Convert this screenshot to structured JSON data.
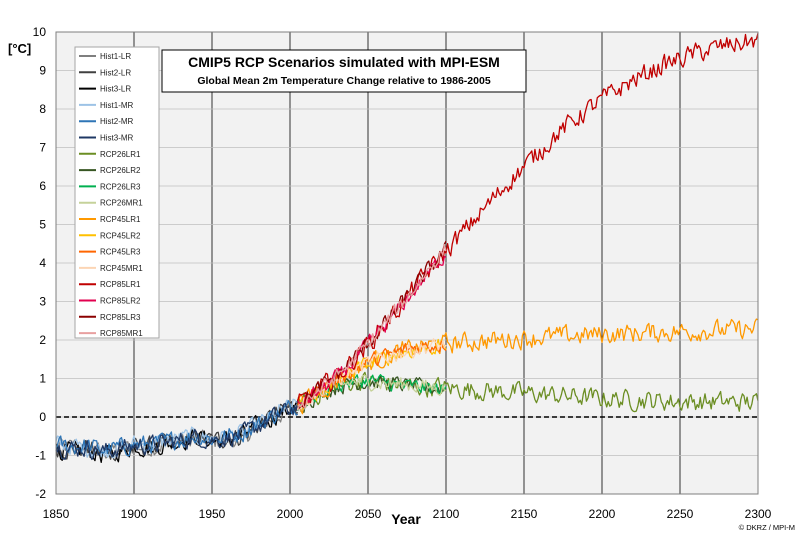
{
  "chart_data": {
    "type": "line",
    "title": "CMIP5 RCP Scenarios simulated with MPI-ESM",
    "subtitle": "Global Mean 2m Temperature Change relative to 1986-2005",
    "xlabel": "Year",
    "ylabel": "[°C]",
    "credit": "© DKRZ / MPI-M",
    "xlim": [
      1850,
      2300
    ],
    "ylim": [
      -2,
      10
    ],
    "xticks": [
      1850,
      1900,
      1950,
      2000,
      2050,
      2100,
      2150,
      2200,
      2250,
      2300
    ],
    "yticks": [
      -2,
      -1,
      0,
      1,
      2,
      3,
      4,
      5,
      6,
      7,
      8,
      9,
      10
    ],
    "grid": true,
    "legend_position": "top-left",
    "reference_line": {
      "y": 0,
      "style": "dashed",
      "color": "#000000"
    },
    "series": [
      {
        "name": "Hist1-LR",
        "color": "#7f7f7f",
        "x": [
          1850,
          1860,
          1870,
          1880,
          1890,
          1900,
          1910,
          1920,
          1930,
          1940,
          1950,
          1960,
          1970,
          1980,
          1990,
          2000,
          2005
        ],
        "y": [
          -0.75,
          -0.8,
          -0.85,
          -0.9,
          -0.85,
          -0.75,
          -0.8,
          -0.7,
          -0.65,
          -0.55,
          -0.65,
          -0.6,
          -0.5,
          -0.25,
          0.0,
          0.2,
          0.35
        ]
      },
      {
        "name": "Hist2-LR",
        "color": "#404040",
        "x": [
          1850,
          1860,
          1870,
          1880,
          1890,
          1900,
          1910,
          1920,
          1930,
          1940,
          1950,
          1960,
          1970,
          1980,
          1990,
          2000,
          2005
        ],
        "y": [
          -0.8,
          -0.85,
          -0.8,
          -0.95,
          -0.9,
          -0.8,
          -0.75,
          -0.7,
          -0.6,
          -0.55,
          -0.6,
          -0.55,
          -0.5,
          -0.2,
          0.05,
          0.25,
          0.35
        ]
      },
      {
        "name": "Hist3-LR",
        "color": "#000000",
        "x": [
          1850,
          1860,
          1870,
          1880,
          1890,
          1900,
          1910,
          1920,
          1930,
          1940,
          1950,
          1960,
          1970,
          1980,
          1990,
          2000,
          2005
        ],
        "y": [
          -0.85,
          -0.9,
          -0.85,
          -1.0,
          -0.9,
          -0.75,
          -0.8,
          -0.72,
          -0.62,
          -0.5,
          -0.62,
          -0.6,
          -0.45,
          -0.22,
          0.02,
          0.22,
          0.3
        ]
      },
      {
        "name": "Hist1-MR",
        "color": "#9dc3e6",
        "x": [
          1850,
          1860,
          1870,
          1880,
          1890,
          1900,
          1910,
          1920,
          1930,
          1940,
          1950,
          1960,
          1970,
          1980,
          1990,
          2000,
          2005
        ],
        "y": [
          -0.7,
          -0.75,
          -0.8,
          -0.85,
          -0.8,
          -0.7,
          -0.72,
          -0.65,
          -0.55,
          -0.5,
          -0.55,
          -0.5,
          -0.42,
          -0.2,
          0.05,
          0.25,
          0.38
        ]
      },
      {
        "name": "Hist2-MR",
        "color": "#2e75b6",
        "x": [
          1850,
          1860,
          1870,
          1880,
          1890,
          1900,
          1910,
          1920,
          1930,
          1940,
          1950,
          1960,
          1970,
          1980,
          1990,
          2000,
          2005
        ],
        "y": [
          -0.72,
          -0.78,
          -0.75,
          -0.85,
          -0.8,
          -0.72,
          -0.7,
          -0.65,
          -0.57,
          -0.5,
          -0.57,
          -0.5,
          -0.4,
          -0.18,
          0.05,
          0.22,
          0.35
        ]
      },
      {
        "name": "Hist3-MR",
        "color": "#1f3864",
        "x": [
          1850,
          1860,
          1870,
          1880,
          1890,
          1900,
          1910,
          1920,
          1930,
          1940,
          1950,
          1960,
          1970,
          1980,
          1990,
          2000,
          2005
        ],
        "y": [
          -0.78,
          -0.82,
          -0.8,
          -0.9,
          -0.82,
          -0.75,
          -0.72,
          -0.68,
          -0.6,
          -0.52,
          -0.6,
          -0.55,
          -0.45,
          -0.22,
          0.0,
          0.2,
          0.3
        ]
      },
      {
        "name": "RCP26LR1",
        "color": "#6b8e23",
        "x": [
          2005,
          2020,
          2030,
          2040,
          2050,
          2060,
          2070,
          2080,
          2090,
          2100,
          2150,
          2200,
          2250,
          2300
        ],
        "y": [
          0.3,
          0.65,
          0.8,
          0.9,
          0.95,
          0.9,
          0.85,
          0.8,
          0.78,
          0.75,
          0.62,
          0.48,
          0.4,
          0.38
        ]
      },
      {
        "name": "RCP26LR2",
        "color": "#375623",
        "x": [
          2005,
          2020,
          2030,
          2040,
          2050,
          2060,
          2070,
          2080,
          2090,
          2100
        ],
        "y": [
          0.3,
          0.6,
          0.78,
          0.88,
          0.92,
          0.88,
          0.85,
          0.8,
          0.75,
          0.72
        ]
      },
      {
        "name": "RCP26LR3",
        "color": "#00b050",
        "x": [
          2005,
          2020,
          2030,
          2040,
          2050,
          2060,
          2070,
          2080,
          2090,
          2100
        ],
        "y": [
          0.3,
          0.62,
          0.82,
          0.92,
          0.95,
          0.9,
          0.82,
          0.78,
          0.75,
          0.7
        ]
      },
      {
        "name": "RCP26MR1",
        "color": "#c5d29a",
        "x": [
          2005,
          2020,
          2030,
          2040,
          2050,
          2060,
          2070,
          2080,
          2090,
          2100
        ],
        "y": [
          0.32,
          0.65,
          0.8,
          0.9,
          0.92,
          0.88,
          0.85,
          0.82,
          0.78,
          0.75
        ]
      },
      {
        "name": "RCP45LR1",
        "color": "#ff9900",
        "x": [
          2005,
          2020,
          2030,
          2040,
          2050,
          2060,
          2070,
          2080,
          2090,
          2100,
          2150,
          2200,
          2250,
          2300
        ],
        "y": [
          0.3,
          0.7,
          0.95,
          1.2,
          1.4,
          1.55,
          1.68,
          1.78,
          1.85,
          1.9,
          2.05,
          2.15,
          2.22,
          2.28
        ]
      },
      {
        "name": "RCP45LR2",
        "color": "#ffc000",
        "x": [
          2005,
          2020,
          2030,
          2040,
          2050,
          2060,
          2070,
          2080,
          2090,
          2100
        ],
        "y": [
          0.3,
          0.68,
          0.92,
          1.18,
          1.38,
          1.52,
          1.65,
          1.75,
          1.8,
          1.85
        ]
      },
      {
        "name": "RCP45LR3",
        "color": "#ff6600",
        "x": [
          2005,
          2020,
          2030,
          2040,
          2050,
          2060,
          2070,
          2080,
          2090,
          2100
        ],
        "y": [
          0.32,
          0.72,
          0.98,
          1.22,
          1.42,
          1.56,
          1.7,
          1.8,
          1.86,
          1.92
        ]
      },
      {
        "name": "RCP45MR1",
        "color": "#fcd5b4",
        "x": [
          2005,
          2020,
          2030,
          2040,
          2050,
          2060,
          2070,
          2080,
          2090,
          2100
        ],
        "y": [
          0.3,
          0.7,
          0.95,
          1.2,
          1.38,
          1.55,
          1.66,
          1.76,
          1.82,
          1.88
        ]
      },
      {
        "name": "RCP85LR1",
        "color": "#c00000",
        "x": [
          2005,
          2020,
          2030,
          2040,
          2050,
          2060,
          2070,
          2080,
          2090,
          2100,
          2110,
          2120,
          2130,
          2140,
          2150,
          2160,
          2170,
          2180,
          2190,
          2200,
          2210,
          2220,
          2230,
          2240,
          2250,
          2260,
          2270,
          2280,
          2290,
          2300
        ],
        "y": [
          0.3,
          0.75,
          1.05,
          1.45,
          1.9,
          2.35,
          2.85,
          3.35,
          3.85,
          4.3,
          4.75,
          5.2,
          5.65,
          6.1,
          6.5,
          6.9,
          7.3,
          7.65,
          7.95,
          8.25,
          8.5,
          8.75,
          8.95,
          9.15,
          9.3,
          9.45,
          9.55,
          9.65,
          9.72,
          9.78
        ]
      },
      {
        "name": "RCP85LR2",
        "color": "#e2004f",
        "x": [
          2005,
          2020,
          2030,
          2040,
          2050,
          2060,
          2070,
          2080,
          2090,
          2100
        ],
        "y": [
          0.3,
          0.72,
          1.02,
          1.42,
          1.88,
          2.32,
          2.82,
          3.3,
          3.8,
          4.25
        ]
      },
      {
        "name": "RCP85LR3",
        "color": "#8b0000",
        "x": [
          2005,
          2020,
          2030,
          2040,
          2050,
          2060,
          2070,
          2080,
          2090,
          2100
        ],
        "y": [
          0.32,
          0.78,
          1.08,
          1.48,
          1.92,
          2.38,
          2.88,
          3.38,
          3.88,
          4.35
        ]
      },
      {
        "name": "RCP85MR1",
        "color": "#e8a0a0",
        "x": [
          2005,
          2020,
          2030,
          2040,
          2050,
          2060,
          2070,
          2080,
          2090,
          2100
        ],
        "y": [
          0.3,
          0.74,
          1.05,
          1.45,
          1.9,
          2.35,
          2.85,
          3.35,
          3.9,
          4.4
        ]
      }
    ]
  }
}
